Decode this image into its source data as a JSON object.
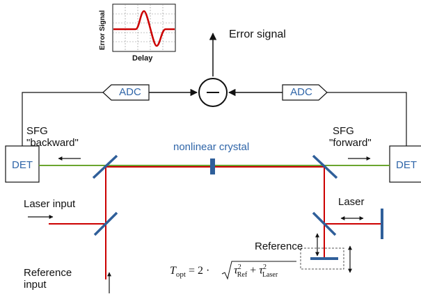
{
  "inset": {
    "ylabel": "Error Signal",
    "xlabel": "Delay"
  },
  "labels": {
    "error_signal": "Error signal",
    "adc_left": "ADC",
    "adc_right": "ADC",
    "minus": "−",
    "det_left": "DET",
    "det_right": "DET",
    "sfg_backward_1": "SFG",
    "sfg_backward_2": "\"backward\"",
    "sfg_forward_1": "SFG",
    "sfg_forward_2": "\"forward\"",
    "crystal": "nonlinear crystal",
    "laser_input": "Laser input",
    "laser": "Laser",
    "reference": "Reference",
    "reference_input_1": "Reference",
    "reference_input_2": "input"
  },
  "formula": {
    "lhs": "T",
    "lhs_sub": "opt",
    "eq": "= 2 ·",
    "tau1": "τ",
    "tau1_sub": "Ref",
    "plus": "+",
    "tau2": "τ",
    "tau2_sub": "Laser",
    "sq": "2"
  },
  "colors": {
    "beam_red": "#cc0000",
    "beam_green": "#6aa52e",
    "optic_blue": "#2f5f9a",
    "text_blue": "#2f65a8"
  }
}
